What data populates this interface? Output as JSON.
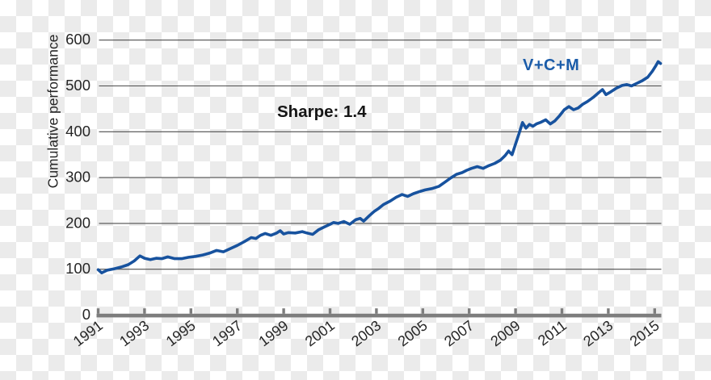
{
  "chart_data": {
    "type": "line",
    "title": "",
    "ylabel": "Cumulative performance",
    "annotation": "Sharpe: 1.4",
    "series_label": "V+C+M",
    "legend_position": "top-right-inside",
    "grid": "horizontal-only",
    "ylim": [
      0,
      600
    ],
    "xlim": [
      1991,
      2015.3
    ],
    "y_ticks": [
      0,
      100,
      200,
      300,
      400,
      500,
      600
    ],
    "x_ticks": [
      1991,
      1993,
      1995,
      1997,
      1999,
      2001,
      2003,
      2005,
      2007,
      2009,
      2011,
      2013,
      2015
    ],
    "colors": {
      "line": "#17529e",
      "series_label": "#1b5ca9",
      "grid": "#4d4d4d",
      "axis": "#7d7d7d",
      "text": "#262626",
      "annotation_text": "#161616",
      "checker_gray": "#ebebeb"
    },
    "series": [
      {
        "name": "V+C+M",
        "points": [
          [
            1991.0,
            99
          ],
          [
            1991.15,
            92
          ],
          [
            1991.4,
            98
          ],
          [
            1991.7,
            101
          ],
          [
            1992.0,
            105
          ],
          [
            1992.3,
            110
          ],
          [
            1992.55,
            118
          ],
          [
            1992.8,
            129
          ],
          [
            1993.0,
            124
          ],
          [
            1993.25,
            121
          ],
          [
            1993.5,
            124
          ],
          [
            1993.75,
            123
          ],
          [
            1994.0,
            127
          ],
          [
            1994.3,
            123
          ],
          [
            1994.6,
            123
          ],
          [
            1994.9,
            126
          ],
          [
            1995.2,
            128
          ],
          [
            1995.5,
            131
          ],
          [
            1995.8,
            135
          ],
          [
            1996.1,
            141
          ],
          [
            1996.4,
            138
          ],
          [
            1996.7,
            145
          ],
          [
            1997.0,
            152
          ],
          [
            1997.3,
            160
          ],
          [
            1997.6,
            169
          ],
          [
            1997.8,
            167
          ],
          [
            1998.0,
            174
          ],
          [
            1998.2,
            178
          ],
          [
            1998.45,
            174
          ],
          [
            1998.7,
            179
          ],
          [
            1998.85,
            184
          ],
          [
            1999.0,
            177
          ],
          [
            1999.2,
            180
          ],
          [
            1999.5,
            179
          ],
          [
            1999.8,
            182
          ],
          [
            2000.0,
            179
          ],
          [
            2000.25,
            176
          ],
          [
            2000.5,
            186
          ],
          [
            2000.75,
            192
          ],
          [
            2001.0,
            198
          ],
          [
            2001.15,
            202
          ],
          [
            2001.35,
            200
          ],
          [
            2001.6,
            204
          ],
          [
            2001.85,
            198
          ],
          [
            2002.1,
            208
          ],
          [
            2002.3,
            211
          ],
          [
            2002.45,
            205
          ],
          [
            2002.7,
            217
          ],
          [
            2002.9,
            226
          ],
          [
            2003.1,
            233
          ],
          [
            2003.3,
            241
          ],
          [
            2003.6,
            249
          ],
          [
            2003.85,
            257
          ],
          [
            2004.1,
            263
          ],
          [
            2004.35,
            259
          ],
          [
            2004.6,
            265
          ],
          [
            2004.9,
            270
          ],
          [
            2005.1,
            273
          ],
          [
            2005.4,
            276
          ],
          [
            2005.7,
            281
          ],
          [
            2005.95,
            290
          ],
          [
            2006.2,
            299
          ],
          [
            2006.45,
            307
          ],
          [
            2006.7,
            311
          ],
          [
            2006.9,
            316
          ],
          [
            2007.1,
            320
          ],
          [
            2007.35,
            324
          ],
          [
            2007.6,
            320
          ],
          [
            2007.85,
            326
          ],
          [
            2008.1,
            331
          ],
          [
            2008.35,
            338
          ],
          [
            2008.55,
            348
          ],
          [
            2008.7,
            358
          ],
          [
            2008.85,
            350
          ],
          [
            2009.0,
            373
          ],
          [
            2009.15,
            396
          ],
          [
            2009.3,
            420
          ],
          [
            2009.45,
            408
          ],
          [
            2009.6,
            416
          ],
          [
            2009.75,
            412
          ],
          [
            2009.9,
            417
          ],
          [
            2010.1,
            421
          ],
          [
            2010.3,
            426
          ],
          [
            2010.5,
            417
          ],
          [
            2010.7,
            424
          ],
          [
            2010.9,
            435
          ],
          [
            2011.1,
            448
          ],
          [
            2011.3,
            455
          ],
          [
            2011.5,
            448
          ],
          [
            2011.7,
            452
          ],
          [
            2011.9,
            460
          ],
          [
            2012.1,
            466
          ],
          [
            2012.35,
            475
          ],
          [
            2012.6,
            486
          ],
          [
            2012.75,
            492
          ],
          [
            2012.9,
            481
          ],
          [
            2013.1,
            487
          ],
          [
            2013.35,
            495
          ],
          [
            2013.6,
            501
          ],
          [
            2013.8,
            503
          ],
          [
            2014.0,
            500
          ],
          [
            2014.2,
            505
          ],
          [
            2014.45,
            511
          ],
          [
            2014.7,
            519
          ],
          [
            2014.9,
            532
          ],
          [
            2015.05,
            544
          ],
          [
            2015.15,
            553
          ],
          [
            2015.25,
            549
          ]
        ]
      }
    ]
  }
}
